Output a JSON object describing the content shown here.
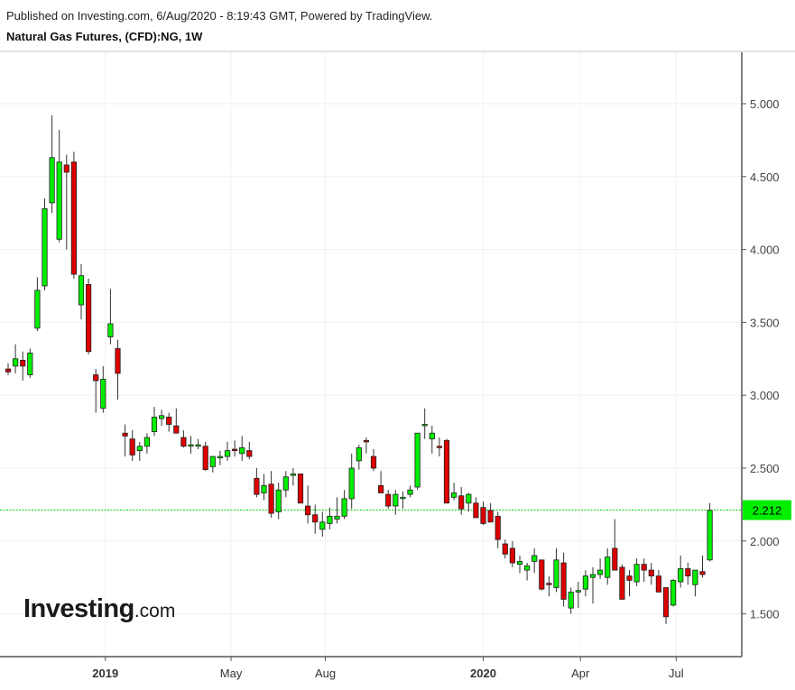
{
  "header": {
    "published": "Published on Investing.com, 6/Aug/2020 - 8:19:43 GMT, Powered by TradingView.",
    "symbol": "Natural Gas Futures, (CFD):NG, 1W"
  },
  "logo": {
    "brand": "Investing",
    "tld": ".com"
  },
  "colors": {
    "up": "#00ee00",
    "down": "#dd0000",
    "wick": "#333333",
    "grid": "#f1f1f1",
    "axis": "#555555",
    "price_line": "#00cc00",
    "price_badge": "#00ee00"
  },
  "chart_data": {
    "type": "candlestick",
    "title": "Natural Gas Futures, (CFD):NG, 1W",
    "ylim": [
      1.25,
      5.3
    ],
    "y_ticks": [
      "5.000",
      "4.500",
      "4.000",
      "3.500",
      "3.000",
      "2.500",
      "2.000",
      "1.500"
    ],
    "x_ticks": [
      {
        "label": "2019",
        "bold": true,
        "index": 13.3
      },
      {
        "label": "May",
        "bold": false,
        "index": 30.5
      },
      {
        "label": "Aug",
        "bold": false,
        "index": 43.4
      },
      {
        "label": "2020",
        "bold": true,
        "index": 65.0
      },
      {
        "label": "Apr",
        "bold": false,
        "index": 78.3
      },
      {
        "label": "Jul",
        "bold": false,
        "index": 91.4
      }
    ],
    "last_price": "2.212",
    "last_value": 2.212,
    "grid": true,
    "candles": [
      [
        3.18,
        3.22,
        3.14,
        3.16
      ],
      [
        3.2,
        3.35,
        3.15,
        3.25
      ],
      [
        3.24,
        3.3,
        3.1,
        3.2
      ],
      [
        3.14,
        3.32,
        3.12,
        3.29
      ],
      [
        3.46,
        3.81,
        3.44,
        3.72
      ],
      [
        3.75,
        4.35,
        3.72,
        4.28
      ],
      [
        4.32,
        4.92,
        4.25,
        4.63
      ],
      [
        4.07,
        4.82,
        4.05,
        4.6
      ],
      [
        4.58,
        4.65,
        4.0,
        4.53
      ],
      [
        4.6,
        4.67,
        3.8,
        3.83
      ],
      [
        3.62,
        3.9,
        3.52,
        3.82
      ],
      [
        3.76,
        3.8,
        3.28,
        3.3
      ],
      [
        3.14,
        3.18,
        2.88,
        3.1
      ],
      [
        2.91,
        3.2,
        2.88,
        3.11
      ],
      [
        3.4,
        3.73,
        3.35,
        3.49
      ],
      [
        3.32,
        3.38,
        2.97,
        3.15
      ],
      [
        2.74,
        2.8,
        2.58,
        2.72
      ],
      [
        2.7,
        2.76,
        2.55,
        2.59
      ],
      [
        2.62,
        2.68,
        2.55,
        2.65
      ],
      [
        2.65,
        2.74,
        2.6,
        2.71
      ],
      [
        2.75,
        2.92,
        2.72,
        2.85
      ],
      [
        2.84,
        2.9,
        2.79,
        2.86
      ],
      [
        2.85,
        2.88,
        2.75,
        2.8
      ],
      [
        2.79,
        2.91,
        2.74,
        2.74
      ],
      [
        2.71,
        2.76,
        2.64,
        2.65
      ],
      [
        2.66,
        2.72,
        2.6,
        2.66
      ],
      [
        2.66,
        2.7,
        2.63,
        2.66
      ],
      [
        2.65,
        2.68,
        2.48,
        2.49
      ],
      [
        2.51,
        2.55,
        2.47,
        2.58
      ],
      [
        2.57,
        2.62,
        2.52,
        2.58
      ],
      [
        2.58,
        2.68,
        2.55,
        2.62
      ],
      [
        2.63,
        2.69,
        2.58,
        2.62
      ],
      [
        2.6,
        2.72,
        2.55,
        2.64
      ],
      [
        2.62,
        2.68,
        2.56,
        2.58
      ],
      [
        2.43,
        2.5,
        2.3,
        2.32
      ],
      [
        2.33,
        2.46,
        2.28,
        2.38
      ],
      [
        2.39,
        2.48,
        2.16,
        2.19
      ],
      [
        2.2,
        2.4,
        2.15,
        2.35
      ],
      [
        2.35,
        2.48,
        2.3,
        2.44
      ],
      [
        2.45,
        2.5,
        2.38,
        2.46
      ],
      [
        2.46,
        2.46,
        2.26,
        2.26
      ],
      [
        2.24,
        2.38,
        2.12,
        2.18
      ],
      [
        2.18,
        2.25,
        2.05,
        2.13
      ],
      [
        2.08,
        2.2,
        2.03,
        2.13
      ],
      [
        2.12,
        2.23,
        2.08,
        2.17
      ],
      [
        2.15,
        2.3,
        2.12,
        2.17
      ],
      [
        2.17,
        2.35,
        2.15,
        2.29
      ],
      [
        2.29,
        2.6,
        2.22,
        2.5
      ],
      [
        2.55,
        2.66,
        2.49,
        2.64
      ],
      [
        2.69,
        2.71,
        2.6,
        2.68
      ],
      [
        2.58,
        2.63,
        2.48,
        2.5
      ],
      [
        2.38,
        2.48,
        2.33,
        2.33
      ],
      [
        2.32,
        2.35,
        2.22,
        2.24
      ],
      [
        2.24,
        2.35,
        2.18,
        2.32
      ],
      [
        2.3,
        2.34,
        2.22,
        2.3
      ],
      [
        2.32,
        2.38,
        2.3,
        2.35
      ],
      [
        2.37,
        2.73,
        2.35,
        2.74
      ],
      [
        2.8,
        2.91,
        2.7,
        2.8
      ],
      [
        2.7,
        2.79,
        2.6,
        2.74
      ],
      [
        2.65,
        2.71,
        2.58,
        2.64
      ],
      [
        2.69,
        2.7,
        2.3,
        2.26
      ],
      [
        2.3,
        2.4,
        2.28,
        2.33
      ],
      [
        2.31,
        2.37,
        2.18,
        2.22
      ],
      [
        2.26,
        2.33,
        2.2,
        2.32
      ],
      [
        2.26,
        2.3,
        2.17,
        2.16
      ],
      [
        2.23,
        2.27,
        2.11,
        2.12
      ],
      [
        2.21,
        2.26,
        2.15,
        2.13
      ],
      [
        2.17,
        2.2,
        1.95,
        2.01
      ],
      [
        1.98,
        2.01,
        1.88,
        1.91
      ],
      [
        1.95,
        2.0,
        1.82,
        1.85
      ],
      [
        1.84,
        1.9,
        1.78,
        1.86
      ],
      [
        1.8,
        1.85,
        1.73,
        1.83
      ],
      [
        1.86,
        1.95,
        1.78,
        1.9
      ],
      [
        1.87,
        1.87,
        1.66,
        1.67
      ],
      [
        1.71,
        1.76,
        1.62,
        1.7
      ],
      [
        1.68,
        1.95,
        1.65,
        1.87
      ],
      [
        1.85,
        1.92,
        1.55,
        1.6
      ],
      [
        1.54,
        1.68,
        1.5,
        1.65
      ],
      [
        1.65,
        1.72,
        1.54,
        1.66
      ],
      [
        1.67,
        1.8,
        1.62,
        1.76
      ],
      [
        1.75,
        1.82,
        1.57,
        1.77
      ],
      [
        1.77,
        1.88,
        1.74,
        1.8
      ],
      [
        1.75,
        1.95,
        1.7,
        1.89
      ],
      [
        1.95,
        2.15,
        1.82,
        1.8
      ],
      [
        1.82,
        1.84,
        1.6,
        1.6
      ],
      [
        1.76,
        1.8,
        1.62,
        1.73
      ],
      [
        1.72,
        1.88,
        1.69,
        1.84
      ],
      [
        1.84,
        1.88,
        1.72,
        1.8
      ],
      [
        1.8,
        1.85,
        1.7,
        1.76
      ],
      [
        1.76,
        1.8,
        1.65,
        1.65
      ],
      [
        1.68,
        1.68,
        1.43,
        1.48
      ],
      [
        1.56,
        1.74,
        1.55,
        1.73
      ],
      [
        1.72,
        1.9,
        1.68,
        1.81
      ],
      [
        1.81,
        1.85,
        1.7,
        1.76
      ],
      [
        1.7,
        1.8,
        1.62,
        1.8
      ],
      [
        1.79,
        1.9,
        1.75,
        1.77
      ],
      [
        1.87,
        2.26,
        1.86,
        2.21
      ]
    ]
  }
}
